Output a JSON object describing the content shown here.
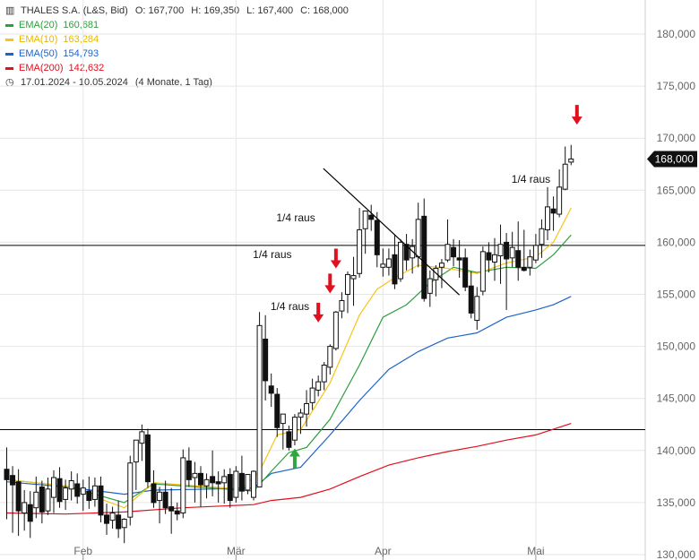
{
  "header": {
    "instrument": "THALES S.A. (L&S, Bid)",
    "open": "O: 167,700",
    "high": "H: 169,350",
    "low": "L: 167,400",
    "close": "C: 168,000",
    "date_range": "17.01.2024 - 10.05.2024",
    "range_note": "(4 Monate, 1 Tag)"
  },
  "legend": [
    {
      "label": "EMA(20)",
      "value": "160,681",
      "color": "#2e9e3e"
    },
    {
      "label": "EMA(10)",
      "value": "163,284",
      "color": "#f5c518"
    },
    {
      "label": "EMA(50)",
      "value": "154,793",
      "color": "#1f63c9"
    },
    {
      "label": "EMA(200)",
      "value": "142,632",
      "color": "#e0101e"
    }
  ],
  "icons": {
    "bar-chart-icon": "▥",
    "clock-icon": "◷"
  },
  "colors": {
    "up_candle_fill": "#ffffff",
    "down_candle_fill": "#111111",
    "grid": "#e6e6e6",
    "arrow_sell": "#e0101e",
    "arrow_buy": "#2ea83e",
    "last_price_badge": "#111111"
  },
  "chart_data": {
    "type": "candlestick",
    "title": "THALES S.A. (L&S, Bid)",
    "x_tick_labels": [
      "Feb",
      "Mär",
      "Apr",
      "Mai"
    ],
    "y_tick_labels": [
      "130,000",
      "135,000",
      "140,000",
      "145,000",
      "150,000",
      "155,000",
      "160,000",
      "165,000",
      "170,000",
      "175,000",
      "180,000",
      "185,000"
    ],
    "ylim": [
      130,
      185.5
    ],
    "last_price_label": "168,000",
    "last_price": 168.0,
    "candles": [
      {
        "o": 138.2,
        "h": 140.3,
        "l": 133.4,
        "c": 137.2
      },
      {
        "o": 137.6,
        "h": 138.5,
        "l": 132.1,
        "c": 136.7
      },
      {
        "o": 137.0,
        "h": 138.2,
        "l": 131.8,
        "c": 134.2
      },
      {
        "o": 134.0,
        "h": 136.2,
        "l": 132.3,
        "c": 135.0
      },
      {
        "o": 134.8,
        "h": 136.1,
        "l": 131.6,
        "c": 133.2
      },
      {
        "o": 134.5,
        "h": 137.5,
        "l": 133.5,
        "c": 136.0
      },
      {
        "o": 136.5,
        "h": 137.1,
        "l": 133.0,
        "c": 134.1
      },
      {
        "o": 134.2,
        "h": 137.4,
        "l": 133.8,
        "c": 136.3
      },
      {
        "o": 135.5,
        "h": 138.1,
        "l": 134.0,
        "c": 137.4
      },
      {
        "o": 137.3,
        "h": 138.4,
        "l": 134.5,
        "c": 135.1
      },
      {
        "o": 135.3,
        "h": 137.2,
        "l": 134.3,
        "c": 136.4
      },
      {
        "o": 136.3,
        "h": 138.0,
        "l": 135.2,
        "c": 137.1
      },
      {
        "o": 136.8,
        "h": 137.8,
        "l": 134.9,
        "c": 135.6
      },
      {
        "o": 135.8,
        "h": 137.2,
        "l": 134.2,
        "c": 136.4
      },
      {
        "o": 136.1,
        "h": 137.5,
        "l": 134.4,
        "c": 135.2
      },
      {
        "o": 135.3,
        "h": 137.4,
        "l": 134.6,
        "c": 136.6
      },
      {
        "o": 136.6,
        "h": 137.5,
        "l": 133.1,
        "c": 133.8
      },
      {
        "o": 133.8,
        "h": 134.9,
        "l": 131.9,
        "c": 133.0
      },
      {
        "o": 133.3,
        "h": 134.6,
        "l": 132.5,
        "c": 134.0
      },
      {
        "o": 133.8,
        "h": 135.2,
        "l": 131.6,
        "c": 132.5
      },
      {
        "o": 132.6,
        "h": 133.5,
        "l": 131.1,
        "c": 133.4
      },
      {
        "o": 133.6,
        "h": 139.5,
        "l": 132.8,
        "c": 138.8
      },
      {
        "o": 138.9,
        "h": 140.8,
        "l": 136.2,
        "c": 141.0
      },
      {
        "o": 140.7,
        "h": 142.5,
        "l": 139.0,
        "c": 141.8
      },
      {
        "o": 141.5,
        "h": 142.1,
        "l": 136.4,
        "c": 137.0
      },
      {
        "o": 136.8,
        "h": 138.1,
        "l": 134.5,
        "c": 135.0
      },
      {
        "o": 135.2,
        "h": 136.5,
        "l": 133.0,
        "c": 136.0
      },
      {
        "o": 136.0,
        "h": 137.1,
        "l": 133.9,
        "c": 134.5
      },
      {
        "o": 134.6,
        "h": 136.4,
        "l": 132.0,
        "c": 134.2
      },
      {
        "o": 134.2,
        "h": 135.0,
        "l": 133.3,
        "c": 133.9
      },
      {
        "o": 134.0,
        "h": 140.1,
        "l": 133.5,
        "c": 139.3
      },
      {
        "o": 139.0,
        "h": 140.3,
        "l": 136.5,
        "c": 137.2
      },
      {
        "o": 137.4,
        "h": 138.9,
        "l": 135.0,
        "c": 137.8
      },
      {
        "o": 137.8,
        "h": 138.5,
        "l": 134.6,
        "c": 136.7
      },
      {
        "o": 136.6,
        "h": 137.8,
        "l": 135.4,
        "c": 137.2
      },
      {
        "o": 137.5,
        "h": 140.0,
        "l": 135.6,
        "c": 136.9
      },
      {
        "o": 137.0,
        "h": 138.0,
        "l": 135.0,
        "c": 136.8
      },
      {
        "o": 136.9,
        "h": 138.2,
        "l": 134.9,
        "c": 137.5
      },
      {
        "o": 137.7,
        "h": 138.3,
        "l": 134.5,
        "c": 135.2
      },
      {
        "o": 135.5,
        "h": 138.5,
        "l": 135.0,
        "c": 138.0
      },
      {
        "o": 137.8,
        "h": 139.5,
        "l": 135.2,
        "c": 136.1
      },
      {
        "o": 136.2,
        "h": 137.5,
        "l": 135.8,
        "c": 137.7
      },
      {
        "o": 135.5,
        "h": 138.1,
        "l": 135.2,
        "c": 138.0
      },
      {
        "o": 136.5,
        "h": 153.3,
        "l": 136.6,
        "c": 152.0
      },
      {
        "o": 150.7,
        "h": 153.0,
        "l": 144.8,
        "c": 146.7
      },
      {
        "o": 146.2,
        "h": 147.4,
        "l": 144.2,
        "c": 145.5
      },
      {
        "o": 145.4,
        "h": 146.0,
        "l": 141.3,
        "c": 142.2
      },
      {
        "o": 142.6,
        "h": 143.5,
        "l": 140.1,
        "c": 143.5
      },
      {
        "o": 141.8,
        "h": 142.4,
        "l": 140.0,
        "c": 140.3
      },
      {
        "o": 141.0,
        "h": 143.5,
        "l": 140.5,
        "c": 143.2
      },
      {
        "o": 143.2,
        "h": 144.0,
        "l": 141.6,
        "c": 143.6
      },
      {
        "o": 143.5,
        "h": 145.8,
        "l": 142.3,
        "c": 144.5
      },
      {
        "o": 144.6,
        "h": 146.9,
        "l": 143.9,
        "c": 146.0
      },
      {
        "o": 145.8,
        "h": 147.2,
        "l": 145.2,
        "c": 146.6
      },
      {
        "o": 146.6,
        "h": 148.5,
        "l": 145.8,
        "c": 148.2
      },
      {
        "o": 148.0,
        "h": 150.2,
        "l": 147.3,
        "c": 150.0
      },
      {
        "o": 149.8,
        "h": 153.4,
        "l": 149.6,
        "c": 153.3
      },
      {
        "o": 153.4,
        "h": 155.2,
        "l": 152.7,
        "c": 154.4
      },
      {
        "o": 155.0,
        "h": 157.2,
        "l": 153.2,
        "c": 156.9
      },
      {
        "o": 156.5,
        "h": 158.6,
        "l": 153.9,
        "c": 156.8
      },
      {
        "o": 157.0,
        "h": 163.3,
        "l": 156.6,
        "c": 161.2
      },
      {
        "o": 161.3,
        "h": 162.8,
        "l": 158.9,
        "c": 163.0
      },
      {
        "o": 162.6,
        "h": 163.6,
        "l": 161.1,
        "c": 162.2
      },
      {
        "o": 162.1,
        "h": 162.9,
        "l": 157.6,
        "c": 158.8
      },
      {
        "o": 157.6,
        "h": 159.4,
        "l": 156.7,
        "c": 157.9
      },
      {
        "o": 157.6,
        "h": 159.4,
        "l": 156.8,
        "c": 158.4
      },
      {
        "o": 158.8,
        "h": 160.7,
        "l": 155.5,
        "c": 156.0
      },
      {
        "o": 156.5,
        "h": 160.3,
        "l": 156.2,
        "c": 160.0
      },
      {
        "o": 159.8,
        "h": 160.8,
        "l": 157.3,
        "c": 158.3
      },
      {
        "o": 158.5,
        "h": 160.3,
        "l": 157.0,
        "c": 159.6
      },
      {
        "o": 158.6,
        "h": 163.8,
        "l": 157.6,
        "c": 162.2
      },
      {
        "o": 162.5,
        "h": 164.2,
        "l": 154.3,
        "c": 154.6
      },
      {
        "o": 155.1,
        "h": 157.3,
        "l": 153.8,
        "c": 156.5
      },
      {
        "o": 156.4,
        "h": 157.8,
        "l": 154.8,
        "c": 157.5
      },
      {
        "o": 157.6,
        "h": 158.4,
        "l": 155.6,
        "c": 158.0
      },
      {
        "o": 158.3,
        "h": 162.2,
        "l": 158.1,
        "c": 159.8
      },
      {
        "o": 159.5,
        "h": 160.3,
        "l": 157.7,
        "c": 158.6
      },
      {
        "o": 158.5,
        "h": 160.2,
        "l": 156.6,
        "c": 158.3
      },
      {
        "o": 158.5,
        "h": 159.4,
        "l": 155.3,
        "c": 155.7
      },
      {
        "o": 155.8,
        "h": 157.2,
        "l": 152.7,
        "c": 153.2
      },
      {
        "o": 152.5,
        "h": 155.7,
        "l": 151.6,
        "c": 154.8
      },
      {
        "o": 155.3,
        "h": 159.6,
        "l": 154.9,
        "c": 159.1
      },
      {
        "o": 159.0,
        "h": 160.0,
        "l": 157.1,
        "c": 158.3
      },
      {
        "o": 158.1,
        "h": 160.4,
        "l": 156.3,
        "c": 158.8
      },
      {
        "o": 158.7,
        "h": 161.7,
        "l": 156.0,
        "c": 159.8
      },
      {
        "o": 160.0,
        "h": 160.9,
        "l": 153.5,
        "c": 158.4
      },
      {
        "o": 158.5,
        "h": 161.0,
        "l": 157.6,
        "c": 159.5
      },
      {
        "o": 159.2,
        "h": 162.0,
        "l": 156.3,
        "c": 157.6
      },
      {
        "o": 157.6,
        "h": 161.2,
        "l": 157.2,
        "c": 157.3
      },
      {
        "o": 157.6,
        "h": 159.3,
        "l": 156.8,
        "c": 158.6
      },
      {
        "o": 158.3,
        "h": 160.8,
        "l": 158.0,
        "c": 159.7
      },
      {
        "o": 159.8,
        "h": 162.2,
        "l": 158.5,
        "c": 161.3
      },
      {
        "o": 161.2,
        "h": 165.3,
        "l": 160.2,
        "c": 163.4
      },
      {
        "o": 163.2,
        "h": 164.4,
        "l": 161.1,
        "c": 162.8
      },
      {
        "o": 162.7,
        "h": 167.0,
        "l": 162.4,
        "c": 165.3
      },
      {
        "o": 165.1,
        "h": 169.2,
        "l": 165.0,
        "c": 167.5
      },
      {
        "o": 167.7,
        "h": 169.35,
        "l": 167.4,
        "c": 168.0
      }
    ],
    "ema10": [
      [
        0,
        137.2
      ],
      [
        10,
        136.6
      ],
      [
        20,
        134.5
      ],
      [
        25,
        136.9
      ],
      [
        40,
        136.3
      ],
      [
        43,
        138.0
      ],
      [
        46,
        141.5
      ],
      [
        50,
        142.0
      ],
      [
        55,
        146.5
      ],
      [
        60,
        153.0
      ],
      [
        63,
        155.5
      ],
      [
        66,
        156.6
      ],
      [
        70,
        157.8
      ],
      [
        75,
        157.5
      ],
      [
        80,
        157.0
      ],
      [
        85,
        158.0
      ],
      [
        90,
        158.6
      ],
      [
        93,
        160.0
      ],
      [
        96,
        163.3
      ]
    ],
    "ema20": [
      [
        0,
        137.2
      ],
      [
        10,
        136.6
      ],
      [
        20,
        135.0
      ],
      [
        25,
        136.8
      ],
      [
        42,
        136.1
      ],
      [
        45,
        138.0
      ],
      [
        48,
        139.8
      ],
      [
        51,
        140.3
      ],
      [
        55,
        143.0
      ],
      [
        60,
        148.2
      ],
      [
        64,
        152.8
      ],
      [
        68,
        154.0
      ],
      [
        72,
        156.1
      ],
      [
        76,
        157.6
      ],
      [
        80,
        157.1
      ],
      [
        85,
        157.6
      ],
      [
        90,
        157.5
      ],
      [
        93,
        158.8
      ],
      [
        96,
        160.7
      ]
    ],
    "ema50": [
      [
        0,
        137.0
      ],
      [
        10,
        136.5
      ],
      [
        20,
        135.8
      ],
      [
        25,
        136.2
      ],
      [
        35,
        136.3
      ],
      [
        42,
        136.4
      ],
      [
        45,
        137.8
      ],
      [
        50,
        138.4
      ],
      [
        55,
        141.5
      ],
      [
        60,
        144.8
      ],
      [
        65,
        147.8
      ],
      [
        70,
        149.5
      ],
      [
        75,
        150.8
      ],
      [
        80,
        151.3
      ],
      [
        85,
        152.8
      ],
      [
        90,
        153.5
      ],
      [
        93,
        154.0
      ],
      [
        96,
        154.8
      ]
    ],
    "ema200": [
      [
        0,
        134.0
      ],
      [
        10,
        133.9
      ],
      [
        20,
        134.1
      ],
      [
        30,
        134.5
      ],
      [
        42,
        134.8
      ],
      [
        45,
        135.2
      ],
      [
        50,
        135.5
      ],
      [
        55,
        136.3
      ],
      [
        60,
        137.5
      ],
      [
        65,
        138.6
      ],
      [
        70,
        139.3
      ],
      [
        75,
        139.9
      ],
      [
        80,
        140.4
      ],
      [
        85,
        141.0
      ],
      [
        90,
        141.5
      ],
      [
        96,
        142.6
      ]
    ],
    "horizontal_lines": [
      142.0,
      159.7
    ],
    "trendline": [
      [
        56,
        162.7
      ],
      [
        77,
        155.2
      ]
    ],
    "annotations": [
      {
        "text": "1/4 raus",
        "x": 53,
        "y": 153.5
      },
      {
        "text": "1/4 raus",
        "x": 50,
        "y": 158.5
      },
      {
        "text": "1/4 raus",
        "x": 54,
        "y": 162.0
      },
      {
        "text": "1/4 raus",
        "x": 94,
        "y": 165.7
      }
    ],
    "arrows": [
      {
        "type": "sell",
        "x": 53,
        "y": 152.3
      },
      {
        "type": "sell",
        "x": 55,
        "y": 155.1
      },
      {
        "type": "sell",
        "x": 56,
        "y": 157.5
      },
      {
        "type": "sell",
        "x": 97,
        "y": 171.3
      },
      {
        "type": "buy",
        "x": 49,
        "y": 140.2
      }
    ]
  }
}
